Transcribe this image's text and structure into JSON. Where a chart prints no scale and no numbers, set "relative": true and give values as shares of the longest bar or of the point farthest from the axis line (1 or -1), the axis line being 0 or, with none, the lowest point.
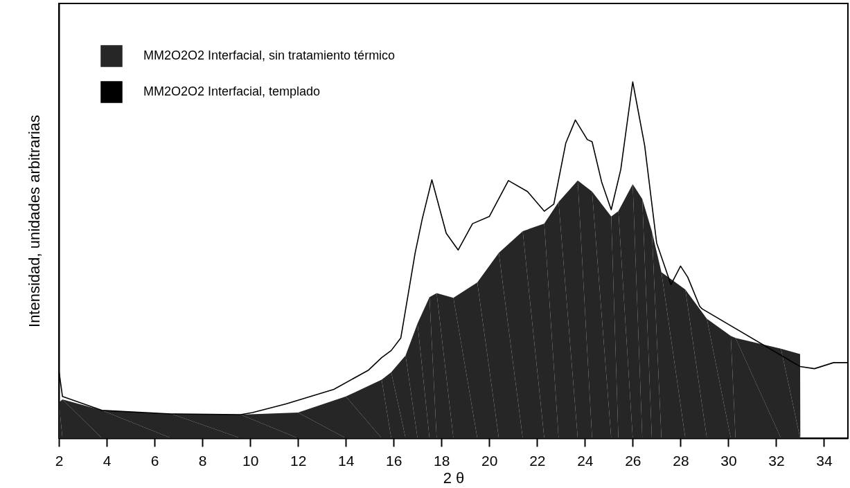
{
  "chart_data": {
    "type": "area",
    "relative": true,
    "xlabel": "2 θ",
    "ylabel": "Intensidad, unidades arbitrarias",
    "xlim": [
      2,
      35
    ],
    "xticks": [
      2,
      4,
      6,
      8,
      10,
      12,
      14,
      16,
      18,
      20,
      22,
      24,
      26,
      28,
      30,
      32,
      34
    ],
    "legend": "top left",
    "tick_labels": "x",
    "series": [
      {
        "name": "MM2O2O2 Interfacial, sin tratamiento térmico",
        "color": "#262626",
        "x": [
          2.0,
          2.15,
          3.8,
          6.7,
          9.6,
          12.0,
          14.0,
          15.5,
          15.9,
          16.5,
          17.0,
          17.5,
          17.8,
          18.5,
          19.5,
          20.4,
          21.4,
          22.3,
          22.9,
          23.7,
          24.3,
          25.1,
          25.4,
          26.0,
          26.4,
          26.8,
          27.2,
          28.2,
          29.1,
          30.1,
          30.3,
          32.2,
          33.0,
          33.01
        ],
        "values": [
          0.1,
          0.109,
          0.078,
          0.068,
          0.066,
          0.072,
          0.117,
          0.164,
          0.185,
          0.232,
          0.322,
          0.396,
          0.407,
          0.394,
          0.437,
          0.52,
          0.581,
          0.602,
          0.663,
          0.723,
          0.692,
          0.622,
          0.637,
          0.713,
          0.671,
          0.581,
          0.466,
          0.417,
          0.335,
          0.287,
          0.281,
          0.251,
          0.236,
          0
        ]
      },
      {
        "name": "MM2O2O2 Interfacial, templado",
        "type": "line",
        "color": "#000000",
        "x": [
          2.0,
          2.15,
          3.8,
          6.7,
          9.6,
          10.1,
          11.5,
          13.5,
          14.95,
          15.5,
          15.9,
          16.3,
          16.9,
          17.2,
          17.6,
          18.2,
          18.7,
          19.3,
          20.0,
          20.8,
          21.6,
          22.3,
          22.7,
          23.2,
          23.6,
          24.1,
          24.3,
          24.7,
          25.1,
          25.5,
          26.0,
          26.5,
          27.0,
          27.6,
          28.0,
          28.3,
          28.8,
          28.9,
          33.0,
          33.6,
          34.4,
          35.0
        ],
        "values": [
          0.19,
          0.117,
          0.078,
          0.068,
          0.066,
          0.072,
          0.096,
          0.137,
          0.191,
          0.226,
          0.246,
          0.281,
          0.52,
          0.616,
          0.725,
          0.575,
          0.528,
          0.602,
          0.622,
          0.723,
          0.692,
          0.637,
          0.657,
          0.828,
          0.893,
          0.838,
          0.832,
          0.719,
          0.641,
          0.754,
          1.0,
          0.821,
          0.548,
          0.431,
          0.483,
          0.452,
          0.37,
          0.363,
          0.201,
          0.195,
          0.212,
          0.212
        ]
      }
    ]
  }
}
